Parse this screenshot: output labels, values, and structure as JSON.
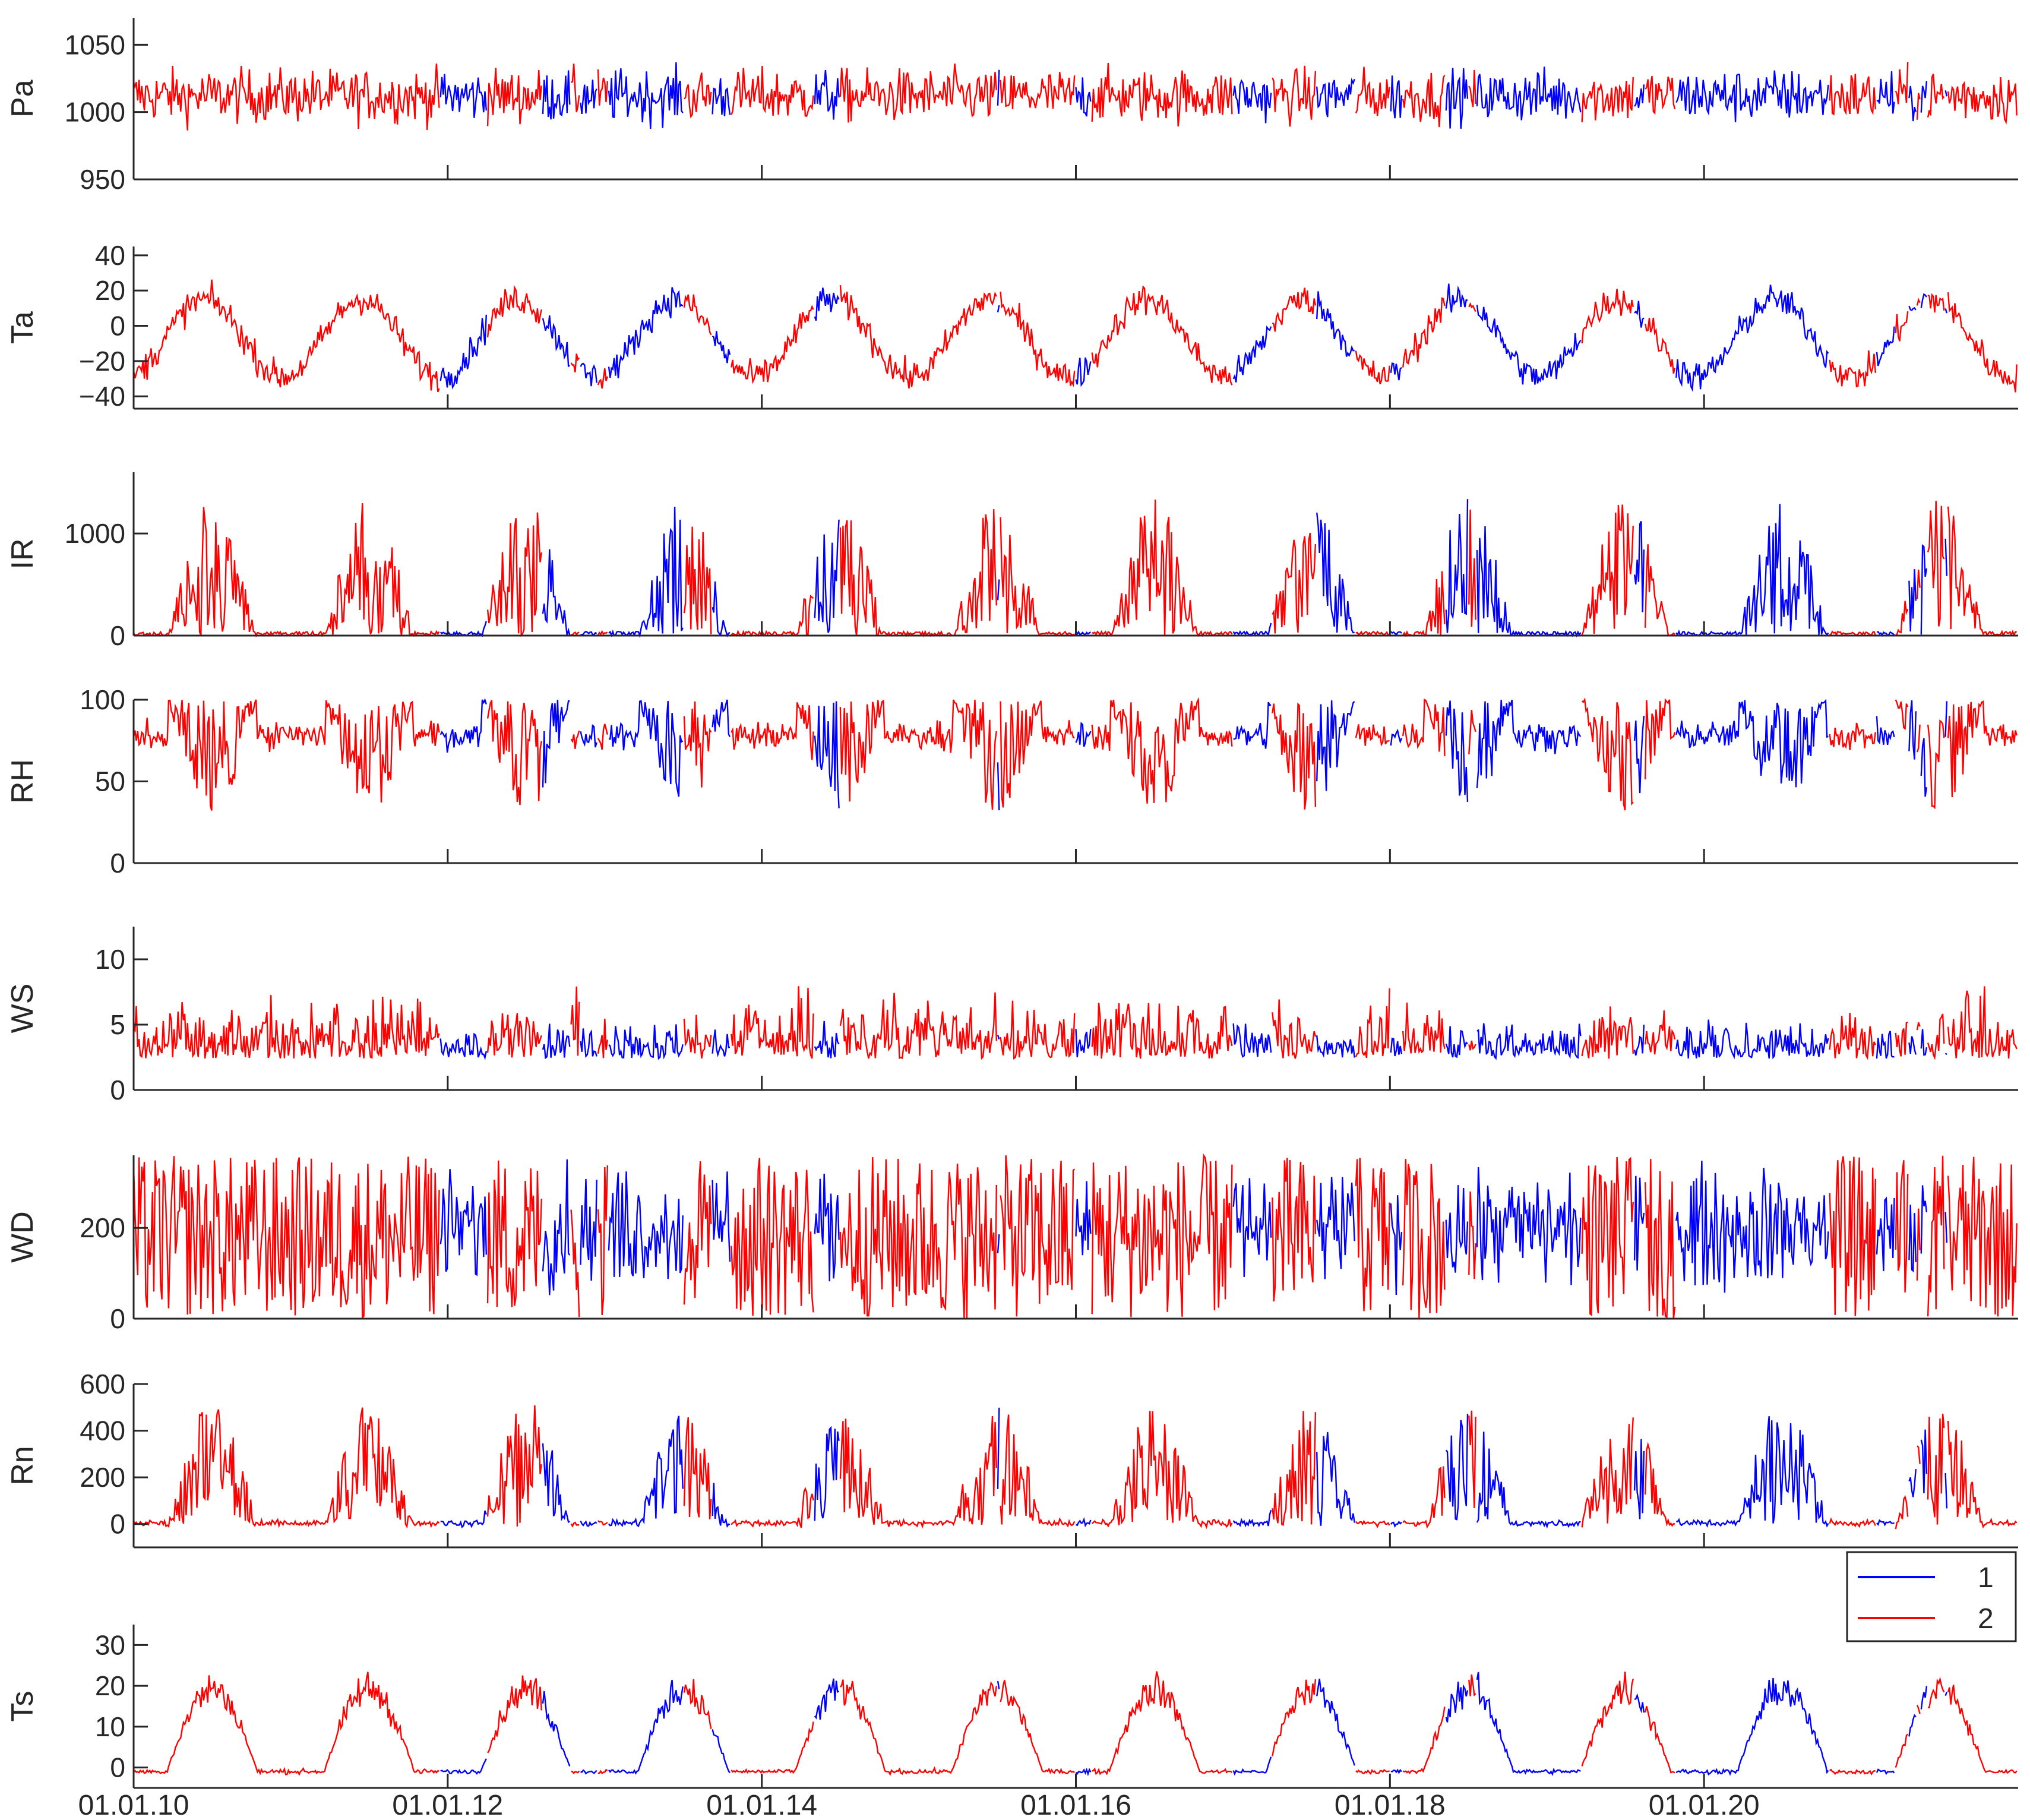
{
  "colors": {
    "series1": "#0000ff",
    "series2": "#ff0000",
    "axis": "#262626"
  },
  "chart_data": {
    "type": "line",
    "x_range_years": [
      2010,
      2022
    ],
    "x_ticks": [
      2010,
      2012,
      2014,
      2016,
      2018,
      2020
    ],
    "x_tick_labels": [
      "01.01.10",
      "01.01.12",
      "01.01.14",
      "01.01.16",
      "01.01.18",
      "01.01.20"
    ],
    "legend": {
      "placement": "top-right of bottom panel",
      "entries": [
        "1",
        "2"
      ]
    },
    "regime2_intervals_years": [
      [
        2010.0,
        2011.95
      ],
      [
        2011.05,
        2011.75
      ],
      [
        2011.75,
        2011.85
      ],
      [
        2012.25,
        2012.6
      ],
      [
        2012.78,
        2012.84
      ],
      [
        2012.95,
        2013.02
      ],
      [
        2013.5,
        2013.68
      ],
      [
        2013.8,
        2014.05
      ],
      [
        2014.05,
        2014.33
      ],
      [
        2014.5,
        2015.5
      ],
      [
        2015.52,
        2016.0
      ],
      [
        2016.1,
        2017.0
      ],
      [
        2017.25,
        2017.53
      ],
      [
        2017.78,
        2018.0
      ],
      [
        2018.08,
        2018.35
      ],
      [
        2018.5,
        2018.55
      ],
      [
        2019.22,
        2019.55
      ],
      [
        2019.62,
        2019.82
      ],
      [
        2020.8,
        2021.1
      ],
      [
        2021.22,
        2021.3
      ],
      [
        2021.35,
        2021.38
      ],
      [
        2021.42,
        2021.53
      ],
      [
        2021.55,
        2022.0
      ]
    ],
    "panels": [
      {
        "name": "Pa",
        "ylabel": "Pa",
        "ylim": [
          950,
          1070
        ],
        "yticks": [
          950,
          1000,
          1050
        ],
        "ytick_labels": [
          "950",
          "1000",
          "1050"
        ],
        "style": "noise",
        "base": 1012,
        "noise": 14,
        "seasonal_amplitude": 0,
        "phase": 0
      },
      {
        "name": "Ta",
        "ylabel": "Ta",
        "ylim": [
          -47,
          45
        ],
        "yticks": [
          -40,
          -20,
          0,
          20,
          40
        ],
        "ytick_labels": [
          "−40",
          "−20",
          "0",
          "20",
          "40"
        ],
        "style": "seasonal",
        "base": -7,
        "noise": 6,
        "seasonal_amplitude": 22,
        "phase": 0
      },
      {
        "name": "IR",
        "ylabel": "IR",
        "ylim": [
          0,
          1600
        ],
        "yticks": [
          0,
          1000
        ],
        "ytick_labels": [
          "0",
          "1000"
        ],
        "style": "pulse",
        "base": 0,
        "noise": 0,
        "seasonal_amplitude": 1350,
        "phase": 0
      },
      {
        "name": "RH",
        "ylabel": "RH",
        "ylim": [
          0,
          100
        ],
        "yticks": [
          0,
          50,
          100
        ],
        "ytick_labels": [
          "0",
          "50",
          "100"
        ],
        "style": "rh",
        "base": 78,
        "noise": 6,
        "seasonal_amplitude": 50,
        "phase": 0
      },
      {
        "name": "WS",
        "ylabel": "WS",
        "ylim": [
          0,
          12.5
        ],
        "yticks": [
          0,
          5,
          10
        ],
        "ytick_labels": [
          "0",
          "5",
          "10"
        ],
        "style": "wind",
        "base": 3,
        "noise": 1.8,
        "seasonal_amplitude": 0,
        "phase": 0
      },
      {
        "name": "WD",
        "ylabel": "WD",
        "ylim": [
          0,
          360
        ],
        "yticks": [
          0,
          200
        ],
        "ytick_labels": [
          "0",
          "200"
        ],
        "style": "direction",
        "base": 200,
        "noise": 90,
        "seasonal_amplitude": 0,
        "phase": 0
      },
      {
        "name": "Rn",
        "ylabel": "Rn",
        "ylim": [
          -100,
          600
        ],
        "yticks": [
          0,
          200,
          400,
          600
        ],
        "ytick_labels": [
          "0",
          "200",
          "400",
          "600"
        ],
        "style": "pulse",
        "base": 0,
        "noise": 15,
        "seasonal_amplitude": 520,
        "phase": 0
      },
      {
        "name": "Ts",
        "ylabel": "Ts",
        "ylim": [
          -5,
          35
        ],
        "yticks": [
          0,
          10,
          20,
          30
        ],
        "ytick_labels": [
          "0",
          "10",
          "20",
          "30"
        ],
        "style": "soil",
        "base": 0,
        "noise": 3,
        "seasonal_amplitude": 24,
        "phase": 0
      }
    ]
  }
}
